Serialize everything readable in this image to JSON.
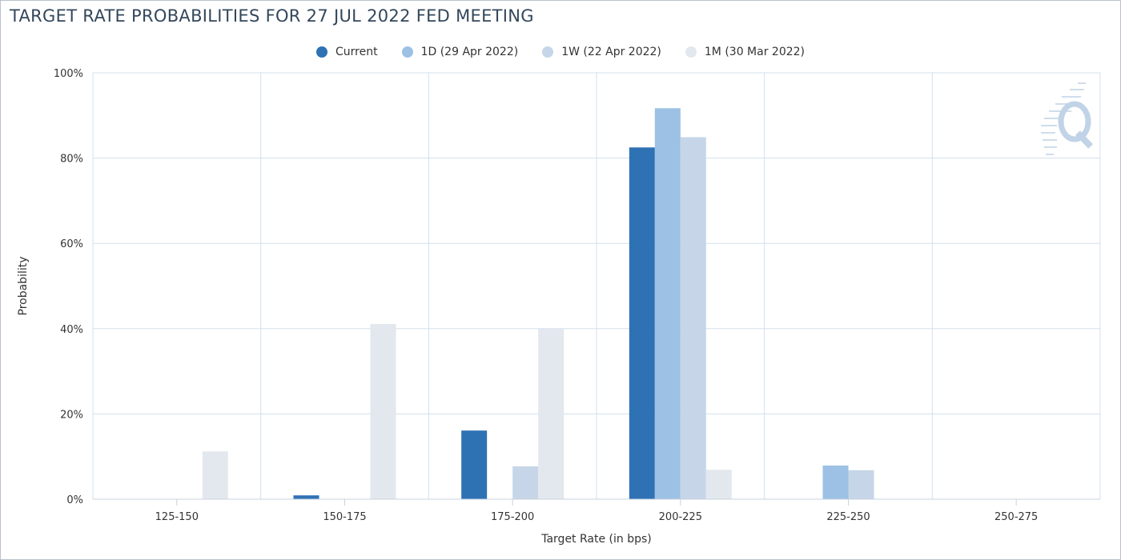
{
  "title": "TARGET RATE PROBABILITIES FOR 27 JUL 2022 FED MEETING",
  "watermark_icon": "quickstrike-q-logo",
  "chart_data": {
    "type": "bar",
    "categories": [
      "125-150",
      "150-175",
      "175-200",
      "200-225",
      "225-250",
      "250-275"
    ],
    "series": [
      {
        "name": "Current",
        "color": "#2e72b4",
        "values": [
          0,
          0.9,
          16.1,
          82.5,
          0,
          0
        ]
      },
      {
        "name": "1D (29 Apr 2022)",
        "color": "#9cc1e4",
        "values": [
          0,
          0,
          0,
          91.7,
          7.9,
          0
        ]
      },
      {
        "name": "1W (22 Apr 2022)",
        "color": "#c6d6e8",
        "values": [
          0,
          0,
          7.7,
          84.9,
          6.8,
          0
        ]
      },
      {
        "name": "1M (30 Mar 2022)",
        "color": "#e3e8ee",
        "values": [
          11.2,
          41.1,
          39.9,
          6.9,
          0,
          0
        ]
      }
    ],
    "ylim": [
      0,
      100
    ],
    "yticks": [
      "0%",
      "20%",
      "40%",
      "60%",
      "80%",
      "100%"
    ],
    "ytick_values": [
      0,
      20,
      40,
      60,
      80,
      100
    ],
    "xlabel": "Target Rate (in bps)",
    "ylabel": "Probability",
    "grid": true,
    "legend_position": "top-center"
  }
}
